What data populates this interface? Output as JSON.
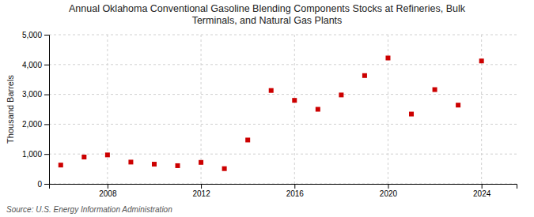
{
  "chart_data": {
    "type": "scatter",
    "title": "Annual Oklahoma Conventional Gasoline Blending Components Stocks at Refineries, Bulk\nTerminals, and Natural Gas Plants",
    "y_label": "Thousand Barrels",
    "annotations": [
      "Source: U.S. Energy Information Administration"
    ],
    "x": [
      2006,
      2007,
      2008,
      2009,
      2010,
      2011,
      2012,
      2013,
      2014,
      2015,
      2016,
      2017,
      2018,
      2019,
      2020,
      2021,
      2022,
      2023,
      2024
    ],
    "values": [
      630,
      900,
      970,
      730,
      660,
      610,
      720,
      510,
      1470,
      3130,
      2800,
      2500,
      2980,
      3630,
      4220,
      2340,
      3160,
      2640,
      4120
    ],
    "color": "#cc0000",
    "marker": "square",
    "xlim": [
      2005.5,
      2025.5
    ],
    "xticks": [
      2008,
      2012,
      2016,
      2020,
      2024
    ],
    "ylim": [
      0,
      5000
    ],
    "yticks": [
      0,
      {
        "value": 1000,
        "label": "1,000"
      },
      {
        "value": 2000,
        "label": "2,000"
      },
      {
        "value": 3000,
        "label": "3,000"
      },
      {
        "value": 4000,
        "label": "4,000"
      },
      {
        "value": 5000,
        "label": "5,000"
      }
    ],
    "grid": true
  }
}
